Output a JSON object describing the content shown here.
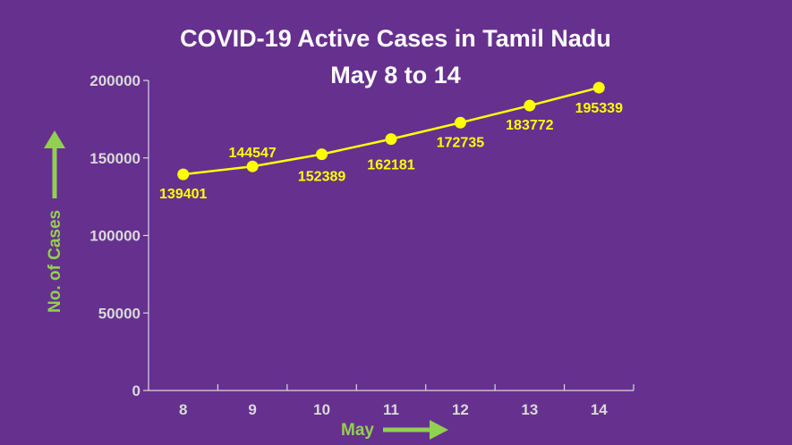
{
  "colors": {
    "background": "#66308f",
    "line": "#ffff00",
    "axis": "#d9d9d9",
    "title": "#ffffff",
    "axis_label": "#92d050"
  },
  "chart_data": {
    "type": "line",
    "title": "COVID-19 Active Cases in Tamil Nadu",
    "subtitle": "May 8 to 14",
    "xlabel": "May",
    "ylabel": "No. of Cases",
    "categories": [
      "8",
      "9",
      "10",
      "11",
      "12",
      "13",
      "14"
    ],
    "series": [
      {
        "name": "Active Cases",
        "values": [
          139401,
          144547,
          152389,
          162181,
          172735,
          183772,
          195339
        ]
      }
    ],
    "yticks": [
      0,
      50000,
      100000,
      150000,
      200000
    ],
    "ylim": [
      0,
      200000
    ],
    "grid": false,
    "legend": "none"
  }
}
